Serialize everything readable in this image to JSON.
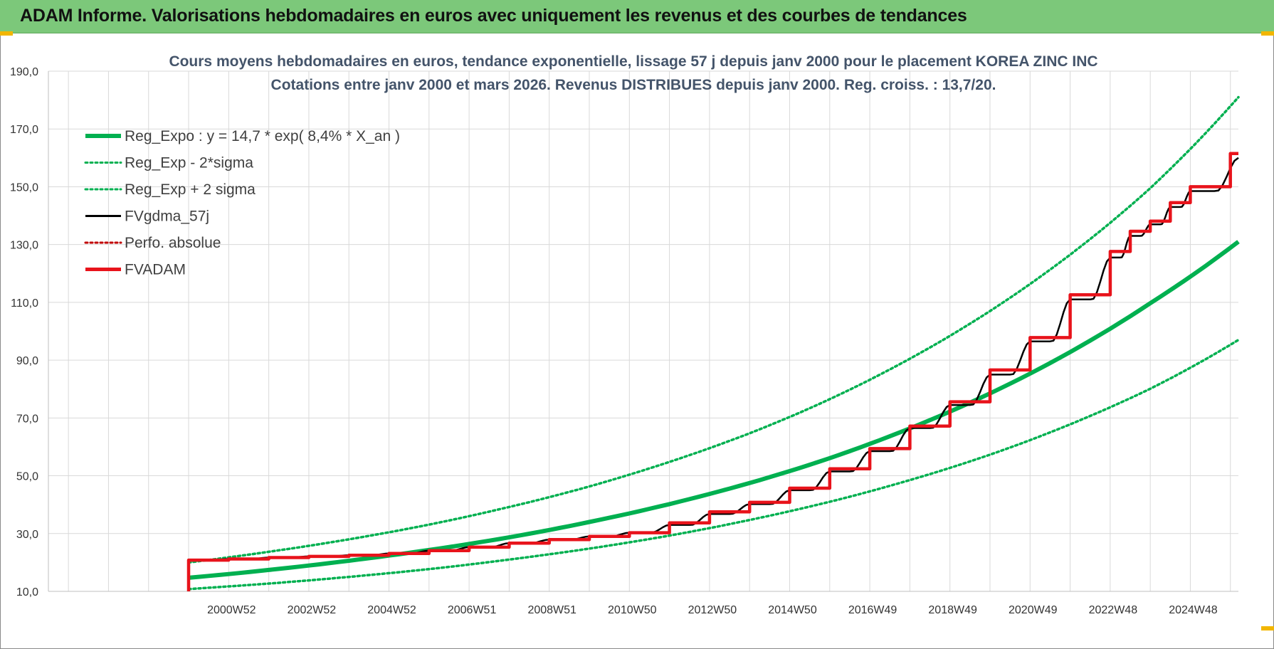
{
  "header": {
    "title": "ADAM Informe. Valorisations hebdomadaires en euros avec uniquement les revenus et des courbes de tendances"
  },
  "colors": {
    "header_bg": "#7cc87a",
    "reg_expo": "#00b050",
    "fvgdma": "#000000",
    "perfo": "#c00000",
    "fvadam": "#e8131b",
    "title_text": "#44546a"
  },
  "chart_data": {
    "type": "line",
    "title_line1": "Cours moyens hebdomadaires en euros, tendance exponentielle, lissage 57 j depuis janv 2000 pour le placement KOREA ZINC INC",
    "title_line2": "Cotations entre janv 2000 et mars 2026. Revenus DISTRIBUES depuis janv 2000. Reg. croiss. : 13,7/20.",
    "xlabel": "",
    "ylabel": "",
    "ylim": [
      10,
      190
    ],
    "y_ticks": [
      "10,0",
      "30,0",
      "50,0",
      "70,0",
      "90,0",
      "110,0",
      "130,0",
      "150,0",
      "170,0",
      "190,0"
    ],
    "x_range": [
      1996.5,
      2026.2
    ],
    "x_ticks": [
      {
        "label": "2000W52",
        "x": 2001.0
      },
      {
        "label": "2002W52",
        "x": 2003.0
      },
      {
        "label": "2004W52",
        "x": 2005.0
      },
      {
        "label": "2006W51",
        "x": 2007.0
      },
      {
        "label": "2008W51",
        "x": 2009.0
      },
      {
        "label": "2010W50",
        "x": 2011.0
      },
      {
        "label": "2012W50",
        "x": 2013.0
      },
      {
        "label": "2014W50",
        "x": 2015.0
      },
      {
        "label": "2016W49",
        "x": 2017.0
      },
      {
        "label": "2018W49",
        "x": 2019.0
      },
      {
        "label": "2020W49",
        "x": 2021.0
      },
      {
        "label": "2022W48",
        "x": 2023.0
      },
      {
        "label": "2024W48",
        "x": 2025.0
      }
    ],
    "grid": true,
    "legend_position": "top-left",
    "series": [
      {
        "name": "Reg_Expo : y = 14,7 * exp( 8,4% *  X_an )",
        "style": "solid-thick",
        "color": "#00b050",
        "x": [
          2000.0,
          2002.0,
          2004.0,
          2006.0,
          2008.0,
          2010.0,
          2012.0,
          2014.0,
          2016.0,
          2018.0,
          2020.0,
          2022.0,
          2024.0,
          2026.2
        ],
        "y": [
          14.7,
          17.4,
          20.6,
          24.3,
          28.7,
          34.0,
          40.2,
          47.5,
          56.1,
          66.4,
          78.5,
          92.8,
          109.7,
          131.0
        ]
      },
      {
        "name": "Reg_Exp - 2*sigma",
        "style": "dotted",
        "color": "#00b050",
        "x": [
          2000.0,
          2002.0,
          2004.0,
          2006.0,
          2008.0,
          2010.0,
          2012.0,
          2014.0,
          2016.0,
          2018.0,
          2020.0,
          2022.0,
          2024.0,
          2026.2
        ],
        "y": [
          10.8,
          12.7,
          15.0,
          17.7,
          21.0,
          24.8,
          29.3,
          34.7,
          41.0,
          48.5,
          57.3,
          67.8,
          80.1,
          97.0
        ]
      },
      {
        "name": "Reg_Exp + 2 sigma",
        "style": "dotted",
        "color": "#00b050",
        "x": [
          2000.0,
          2002.0,
          2004.0,
          2006.0,
          2008.0,
          2010.0,
          2012.0,
          2014.0,
          2016.0,
          2018.0,
          2020.0,
          2022.0,
          2024.0,
          2026.2
        ],
        "y": [
          20.0,
          23.7,
          28.0,
          33.1,
          39.2,
          46.3,
          54.8,
          64.7,
          76.5,
          90.5,
          107.0,
          126.5,
          149.5,
          181.0
        ]
      },
      {
        "name": "FVgdma_57j",
        "style": "smooth-steps",
        "color": "#000000",
        "x": [
          2000.0,
          2001.0,
          2002.0,
          2003.0,
          2004.0,
          2005.0,
          2006.0,
          2007.0,
          2008.0,
          2009.0,
          2010.0,
          2011.0,
          2012.0,
          2013.0,
          2014.0,
          2015.0,
          2016.0,
          2017.0,
          2018.0,
          2019.0,
          2020.0,
          2021.0,
          2022.0,
          2023.0,
          2023.5,
          2024.0,
          2024.5,
          2025.0,
          2026.2
        ],
        "y": [
          20.8,
          21.2,
          21.7,
          22.1,
          22.5,
          23.1,
          24.1,
          25.3,
          26.7,
          27.9,
          29.0,
          30.3,
          33.0,
          36.8,
          40.2,
          45.0,
          51.5,
          58.5,
          66.5,
          74.5,
          85.0,
          96.5,
          111.0,
          125.5,
          133.0,
          137.0,
          143.0,
          148.5,
          160.0
        ]
      },
      {
        "name": "Perfo. absolue",
        "style": "dotted",
        "color": "#c00000",
        "x": [],
        "y": []
      },
      {
        "name": "FVADAM",
        "style": "steps",
        "color": "#e8131b",
        "x": [
          2000.0,
          2001.0,
          2002.0,
          2003.0,
          2004.0,
          2005.0,
          2006.0,
          2007.0,
          2008.0,
          2009.0,
          2010.0,
          2011.0,
          2012.0,
          2013.0,
          2014.0,
          2015.0,
          2016.0,
          2017.0,
          2018.0,
          2019.0,
          2020.0,
          2021.0,
          2022.0,
          2023.0,
          2023.5,
          2024.0,
          2024.5,
          2025.0,
          2026.0
        ],
        "y": [
          20.8,
          21.2,
          21.7,
          22.1,
          22.5,
          23.1,
          24.1,
          25.3,
          26.7,
          27.9,
          29.0,
          30.3,
          33.7,
          37.5,
          40.8,
          45.7,
          52.4,
          59.4,
          67.2,
          75.6,
          86.6,
          97.8,
          112.6,
          127.6,
          134.6,
          138.1,
          144.5,
          150.0,
          161.5
        ]
      }
    ]
  }
}
